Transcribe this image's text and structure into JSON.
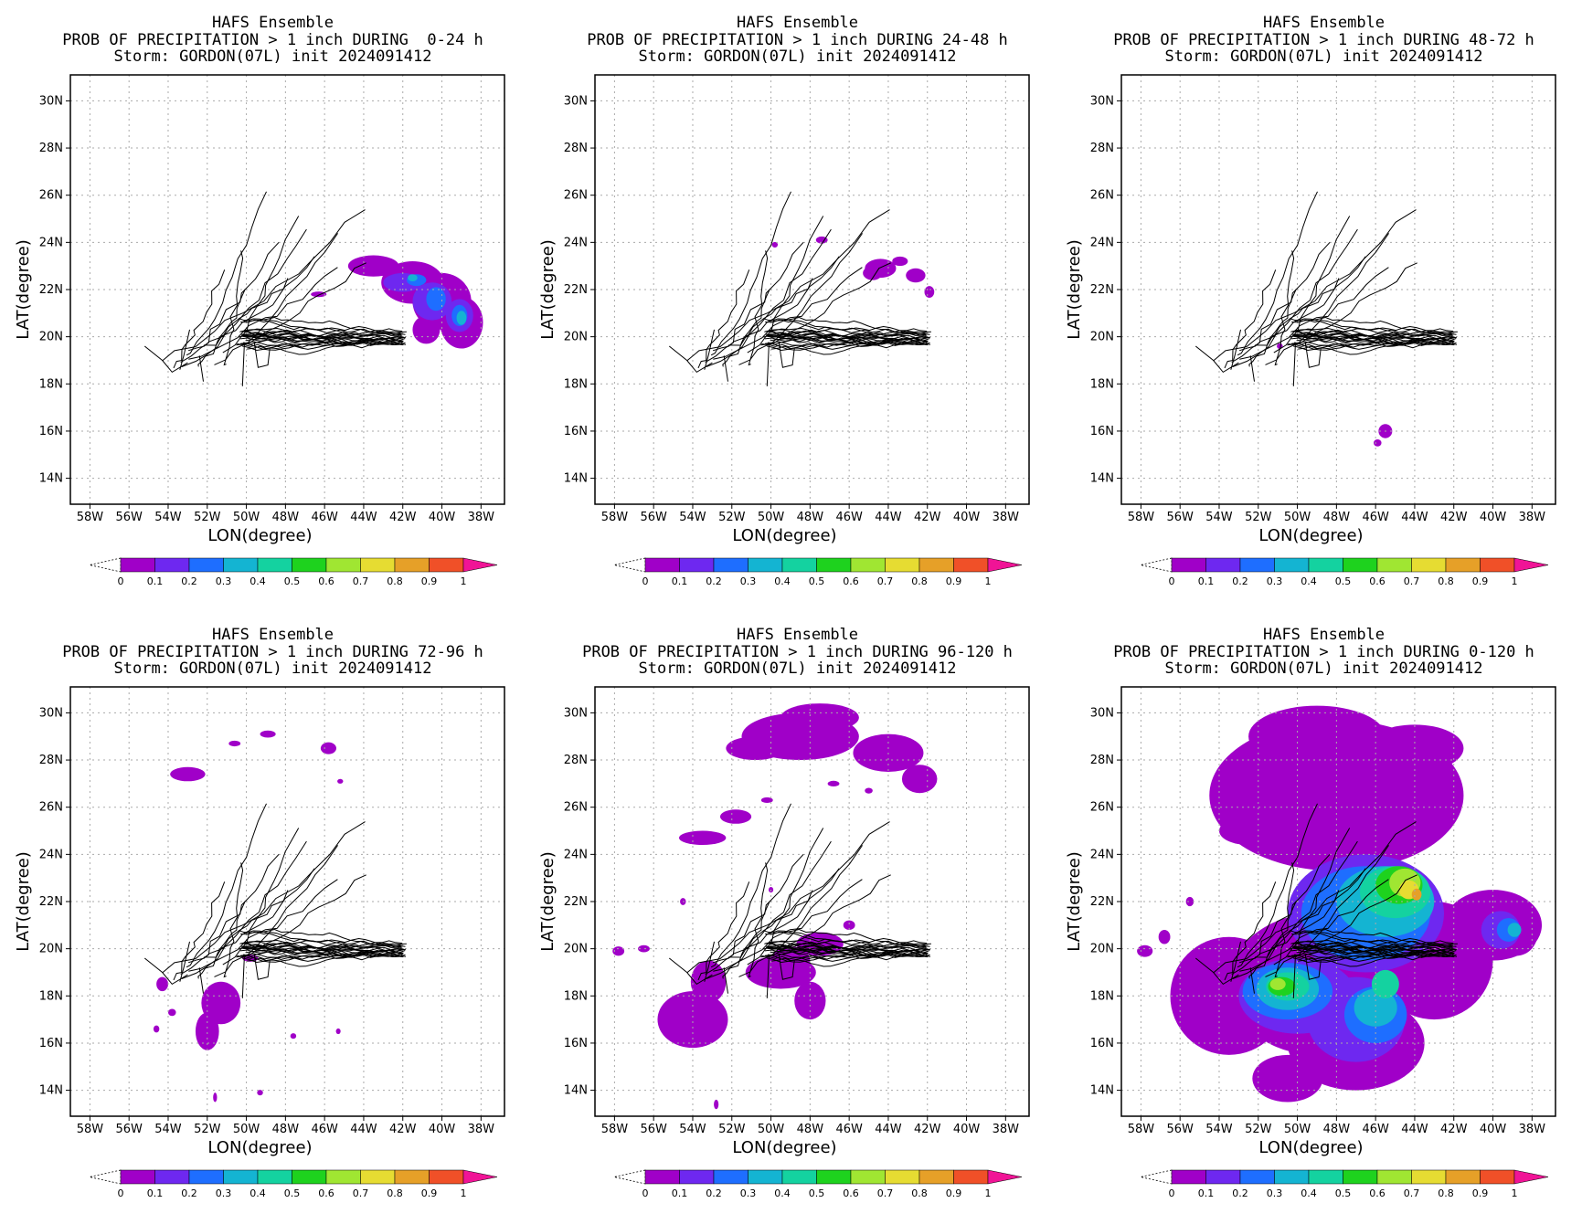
{
  "labels": {
    "lat_axis": "LAT(degree)",
    "lon_axis": "LON(degree)",
    "lat_ticks": [
      "30N",
      "28N",
      "26N",
      "24N",
      "22N",
      "20N",
      "18N",
      "16N",
      "14N"
    ],
    "lon_ticks": [
      "58W",
      "56W",
      "54W",
      "52W",
      "50W",
      "48W",
      "46W",
      "44W",
      "42W",
      "40W",
      "38W"
    ],
    "colorbar_ticks": [
      "0",
      "0.1",
      "0.2",
      "0.3",
      "0.4",
      "0.5",
      "0.6",
      "0.7",
      "0.8",
      "0.9",
      "1"
    ]
  },
  "colorbar_colors": [
    "#a000c8",
    "#6e28f0",
    "#1e6eff",
    "#14b4d2",
    "#14d2a0",
    "#1ed21e",
    "#a0e632",
    "#e6dc32",
    "#e6a028",
    "#f05028",
    "#f01496"
  ],
  "panels": [
    {
      "id": "p1",
      "title1": "HAFS Ensemble",
      "title2": "PROB OF PRECIPITATION > 1 inch DURING  0-24 h",
      "title3": "Storm: GORDON(07L) init 2024091412"
    },
    {
      "id": "p2",
      "title1": "HAFS Ensemble",
      "title2": "PROB OF PRECIPITATION > 1 inch DURING 24-48 h",
      "title3": "Storm: GORDON(07L) init 2024091412"
    },
    {
      "id": "p3",
      "title1": "HAFS Ensemble",
      "title2": "PROB OF PRECIPITATION > 1 inch DURING 48-72 h",
      "title3": "Storm: GORDON(07L) init 2024091412"
    },
    {
      "id": "p4",
      "title1": "HAFS Ensemble",
      "title2": "PROB OF PRECIPITATION > 1 inch DURING 72-96 h",
      "title3": "Storm: GORDON(07L) init 2024091412"
    },
    {
      "id": "p5",
      "title1": "HAFS Ensemble",
      "title2": "PROB OF PRECIPITATION > 1 inch DURING 96-120 h",
      "title3": "Storm: GORDON(07L) init 2024091412"
    },
    {
      "id": "p6",
      "title1": "HAFS Ensemble",
      "title2": "PROB OF PRECIPITATION > 1 inch DURING 0-120 h",
      "title3": "Storm: GORDON(07L) init 2024091412"
    }
  ]
}
